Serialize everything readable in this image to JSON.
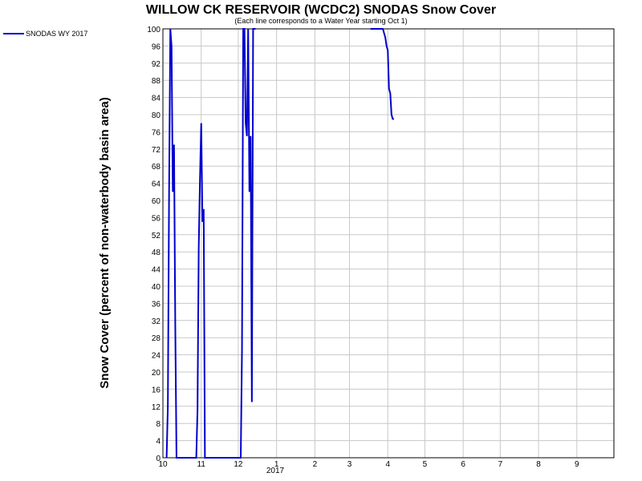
{
  "chart_data": {
    "type": "line",
    "title": "WILLOW CK RESERVOIR (WCDC2) SNODAS Snow Cover",
    "subtitle": "(Each line corresponds to a Water Year starting Oct 1)",
    "ylabel": "Snow Cover (percent of non-waterbody basin area)",
    "xlabel": "",
    "ylim": [
      0,
      100
    ],
    "y_ticks": [
      0,
      4,
      8,
      12,
      16,
      20,
      24,
      28,
      32,
      36,
      40,
      44,
      48,
      52,
      56,
      60,
      64,
      68,
      72,
      76,
      80,
      84,
      88,
      92,
      96,
      100
    ],
    "x_tick_labels": [
      "10",
      "11",
      "12",
      "1",
      "2",
      "3",
      "4",
      "5",
      "6",
      "7",
      "8",
      "9"
    ],
    "x_year_label": "2017",
    "grid": true,
    "legend_position": "top-left",
    "colors": {
      "series": "#0000cc"
    },
    "series": [
      {
        "name": "SNODAS WY 2017",
        "x": [
          "2016-10-04",
          "2016-10-05",
          "2016-10-06",
          "2016-10-07",
          "2016-10-08",
          "2016-10-09",
          "2016-10-10",
          "2016-10-11",
          "2016-10-12",
          "2016-10-13",
          "2016-10-14",
          "2016-10-15",
          "2016-10-16",
          "2016-10-17",
          "2016-10-18",
          "2016-10-19",
          "2016-10-20",
          "2016-10-21",
          "2016-10-22",
          "2016-10-23",
          "2016-10-24",
          "2016-10-25",
          "2016-10-26",
          "2016-10-27",
          "2016-10-28",
          "2016-10-29",
          "2016-10-30",
          "2016-10-31",
          "2016-11-01",
          "2016-11-02",
          "2016-11-03",
          "2016-11-04",
          "2016-11-05",
          "2016-11-06",
          "2016-11-07",
          "2016-11-08",
          "2016-11-09",
          "2016-11-10",
          "2016-11-11",
          "2016-11-12",
          "2016-11-13",
          "2016-11-14",
          "2016-11-15",
          "2016-11-16",
          "2016-11-17",
          "2016-11-18",
          "2016-11-19",
          "2016-11-20",
          "2016-11-21",
          "2016-11-22",
          "2016-11-23",
          "2016-11-24",
          "2016-11-25",
          "2016-11-26",
          "2016-11-27",
          "2016-11-28",
          "2016-11-29",
          "2016-11-30",
          "2016-12-01",
          "2016-12-02",
          "2016-12-03",
          "2016-12-04",
          "2016-12-05",
          "2016-12-06",
          "2016-12-07",
          "2016-12-08",
          "2016-12-09",
          "2016-12-10",
          "2016-12-11",
          "2016-12-12",
          "2016-12-13",
          "2016-12-14",
          "2016-12-15",
          "2017-03-18",
          "2017-03-19",
          "2017-03-20",
          "2017-03-21",
          "2017-03-22",
          "2017-03-23",
          "2017-03-24",
          "2017-03-25",
          "2017-03-26",
          "2017-03-27",
          "2017-03-28",
          "2017-03-29",
          "2017-03-30",
          "2017-03-31",
          "2017-04-01",
          "2017-04-02",
          "2017-04-03",
          "2017-04-04",
          "2017-04-05",
          "2017-04-06"
        ],
        "values": [
          0,
          12,
          62,
          100,
          96,
          62,
          73,
          31,
          0,
          0,
          0,
          0,
          0,
          0,
          0,
          0,
          0,
          0,
          0,
          0,
          0,
          0,
          0,
          0,
          0,
          11,
          49,
          65,
          78,
          55,
          58,
          0,
          0,
          0,
          0,
          0,
          0,
          0,
          0,
          0,
          0,
          0,
          0,
          0,
          0,
          0,
          0,
          0,
          0,
          0,
          0,
          0,
          0,
          0,
          0,
          0,
          0,
          0,
          0,
          0,
          0,
          25,
          100,
          100,
          78,
          75,
          100,
          62,
          75,
          13,
          100,
          100,
          100,
          100,
          100,
          100,
          100,
          100,
          100,
          100,
          100,
          100,
          100,
          100,
          99,
          98,
          96,
          95,
          86,
          85,
          80,
          79,
          79
        ]
      }
    ]
  }
}
